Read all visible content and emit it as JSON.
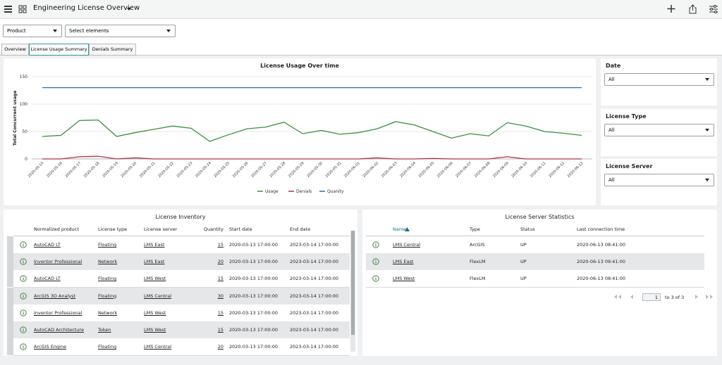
{
  "header": {
    "title": "Engineering License Overview"
  },
  "filters": [
    "Product",
    "Select elements"
  ],
  "tabs": [
    "Overview",
    "License Usage Summary",
    "Denials Summary"
  ],
  "chart_data": {
    "type": "line",
    "title": "License Usage Over time",
    "y_label": "Total Concurrent usage",
    "x": [
      "2020-05-15",
      "2020-05-16",
      "2020-05-17",
      "2020-05-18",
      "2020-05-19",
      "2020-05-20",
      "2020-05-21",
      "2020-05-22",
      "2020-05-23",
      "2020-05-24",
      "2020-05-25",
      "2020-05-26",
      "2020-05-27",
      "2020-05-28",
      "2020-05-29",
      "2020-05-30",
      "2020-05-31",
      "2020-06-01",
      "2020-06-02",
      "2020-06-03",
      "2020-06-04",
      "2020-06-05",
      "2020-06-06",
      "2020-06-07",
      "2020-06-08",
      "2020-06-09",
      "2020-06-10",
      "2020-06-11",
      "2020-06-12",
      "2020-06-13"
    ],
    "ylim": [
      0,
      150
    ],
    "yticks": [
      0,
      50,
      100,
      150
    ],
    "grid": true,
    "series": [
      {
        "name": "Usage",
        "color": "#3a8f3f",
        "values": [
          41,
          43,
          70,
          71,
          41,
          48,
          54,
          60,
          56,
          32,
          44,
          55,
          58,
          67,
          46,
          52,
          45,
          48,
          55,
          68,
          62,
          50,
          38,
          46,
          42,
          66,
          60,
          50,
          47,
          43
        ]
      },
      {
        "name": "Denials",
        "color": "#b0304a",
        "values": [
          0,
          0,
          4,
          5,
          0,
          2,
          0,
          0,
          0,
          0,
          0,
          0,
          0,
          0,
          0,
          0,
          0,
          0,
          2,
          0,
          0,
          1,
          0,
          0,
          0,
          4,
          0,
          0,
          0,
          0
        ]
      },
      {
        "name": "Quanity",
        "color": "#2a6db0",
        "values": [
          130,
          130,
          130,
          130,
          130,
          130,
          130,
          130,
          130,
          130,
          130,
          130,
          130,
          130,
          130,
          130,
          130,
          130,
          130,
          130,
          130,
          130,
          130,
          130,
          130,
          130,
          130,
          130,
          130,
          130
        ]
      }
    ]
  },
  "side_filters": [
    {
      "label": "Date",
      "value": "All"
    },
    {
      "label": "License Type",
      "value": "All"
    },
    {
      "label": "License Server",
      "value": "All"
    }
  ],
  "inventory": {
    "title": "License Inventory",
    "headers": [
      "Normalized product",
      "License type",
      "License server",
      "Quantity",
      "Start date",
      "End date"
    ],
    "rows": [
      [
        "AutoCAD LT",
        "Floating",
        "LMS East",
        15,
        "2020-03-13 17:00:00",
        "2023-03-14 17:00:00"
      ],
      [
        "Inventor Professional",
        "Network",
        "LMS East",
        20,
        "2020-03-13 17:00:00",
        "2023-03-14 17:00:00"
      ],
      [
        "AutoCAD LT",
        "Floating",
        "LMS West",
        15,
        "2020-03-13 17:00:00",
        "2023-03-14 17:00:00"
      ],
      [
        "ArcGIS 3D Analyst",
        "Floating",
        "LMS Central",
        30,
        "2020-03-13 17:00:00",
        "2023-03-14 17:00:00"
      ],
      [
        "Inventor Professional",
        "Network",
        "LMS West",
        15,
        "2020-03-13 17:00:00",
        "2023-03-14 17:00:00"
      ],
      [
        "AutoCAD Architecture",
        "Token",
        "LMS West",
        15,
        "2020-03-13 17:00:00",
        "2023-03-14 17:00:00"
      ],
      [
        "ArcGIS Engine",
        "Floating",
        "LMS Central",
        20,
        "2020-03-13 17:00:00",
        "2023-03-14 17:00:00"
      ]
    ]
  },
  "servers": {
    "title": "License Server Statistics",
    "headers": [
      "Name",
      "Type",
      "Status",
      "Last connection time"
    ],
    "rows": [
      [
        "LMS Central",
        "ArcGIS",
        "UP",
        "2020-06-13 08:41:00"
      ],
      [
        "LMS East",
        "FlexLM",
        "UP",
        "2020-06-13 09:41:00"
      ],
      [
        "LMS West",
        "FlexLM",
        "UP",
        "2020-06-13 08:41:00"
      ]
    ],
    "pagination": {
      "page": "1",
      "summary": "to 3 of 3"
    }
  }
}
